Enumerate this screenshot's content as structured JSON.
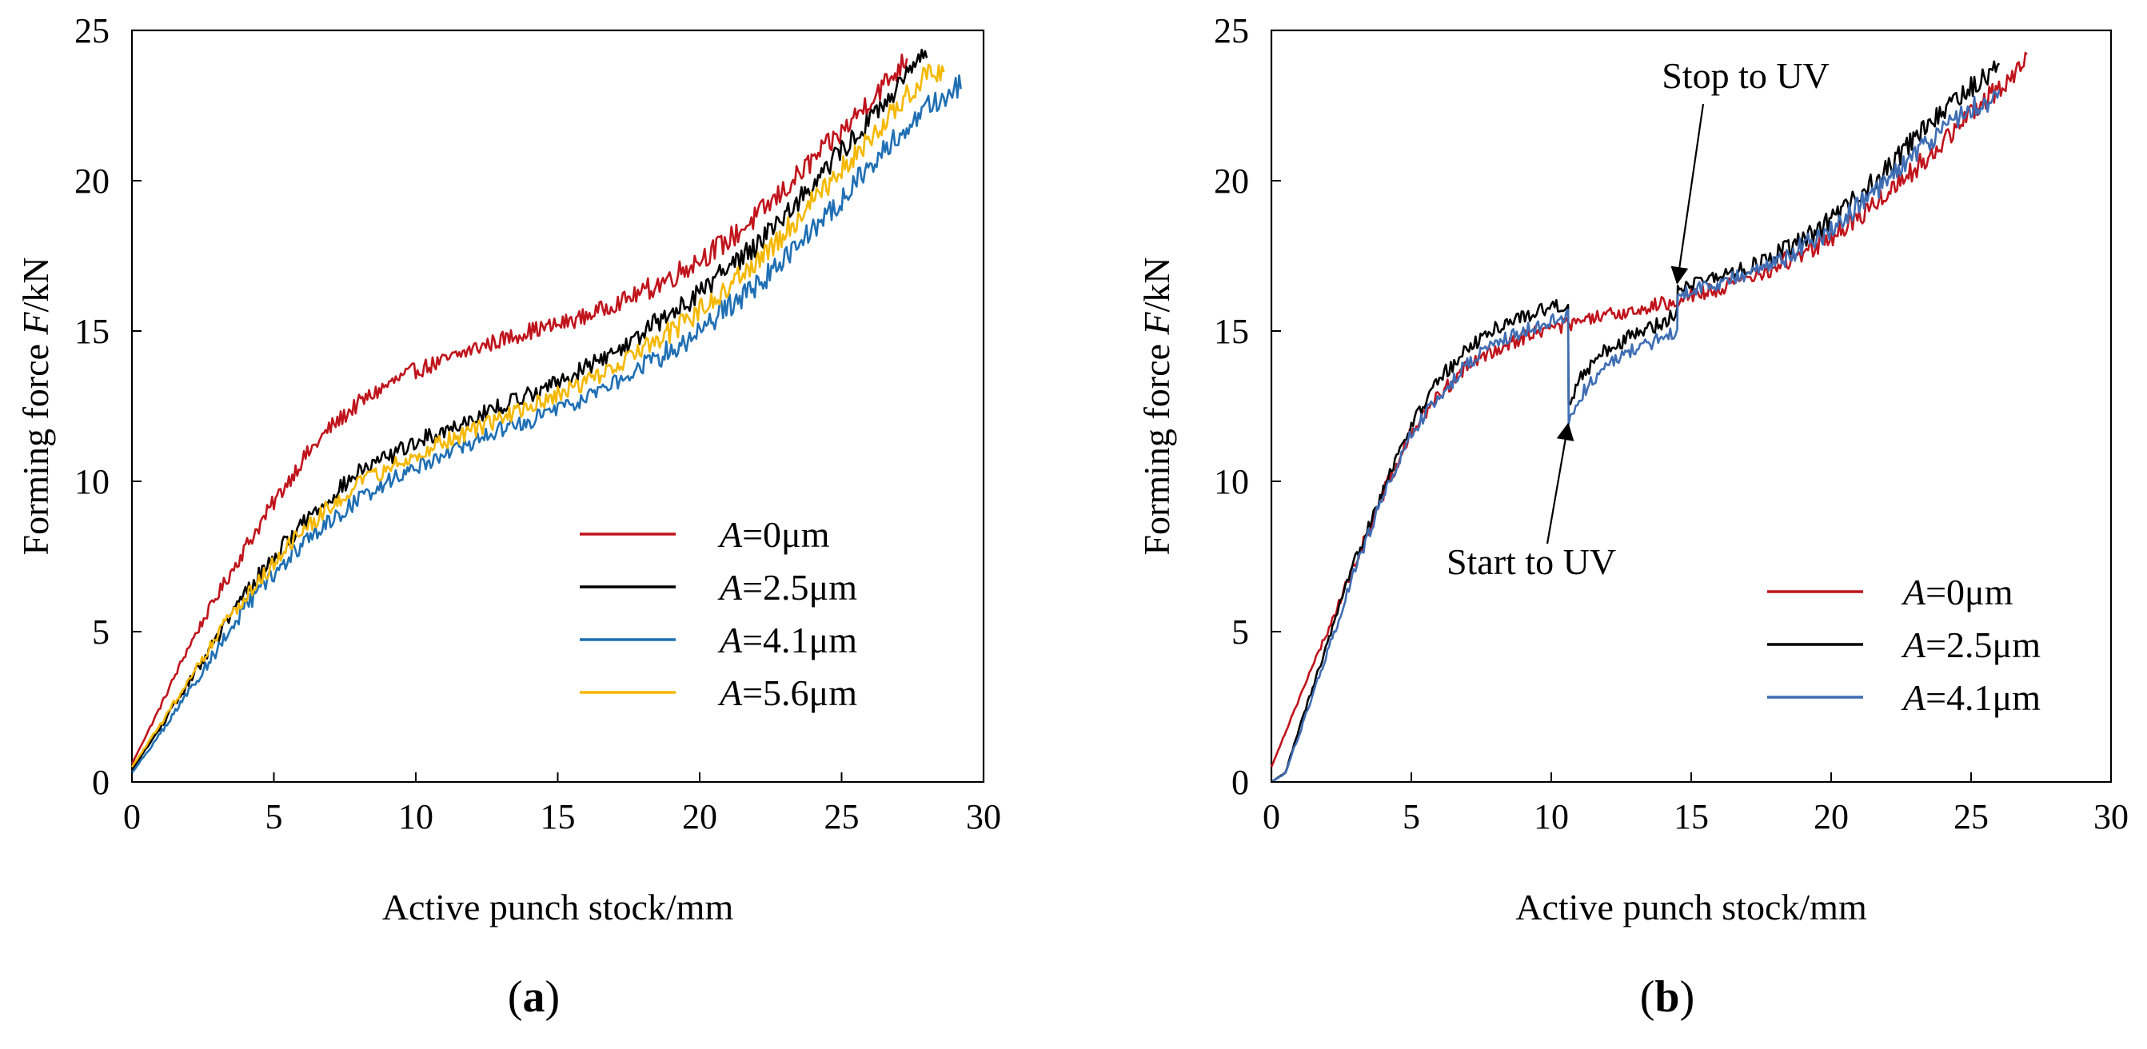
{
  "chart_data": [
    {
      "type": "line",
      "panel_label": "(a)",
      "xlabel": "Active punch stock/mm",
      "ylabel_prefix": "Forming force ",
      "ylabel_var": "F",
      "ylabel_suffix": "/kN",
      "xlim": [
        0,
        30
      ],
      "ylim": [
        0,
        25
      ],
      "xticks": [
        "0",
        "5",
        "10",
        "15",
        "20",
        "25",
        "30"
      ],
      "yticks": [
        "0",
        "5",
        "10",
        "15",
        "20",
        "25"
      ],
      "grid": false,
      "legend_position": "bottom-right",
      "noise": 0.28,
      "series": [
        {
          "name": "A=0μm",
          "legend_var": "A",
          "legend_rest": "=0μm",
          "color": "#c0141c",
          "points": [
            [
              0,
              0.6
            ],
            [
              1,
              2.5
            ],
            [
              2,
              4.5
            ],
            [
              3,
              6.2
            ],
            [
              4,
              7.8
            ],
            [
              5,
              9.3
            ],
            [
              6,
              10.7
            ],
            [
              7,
              11.8
            ],
            [
              8,
              12.6
            ],
            [
              9,
              13.2
            ],
            [
              10,
              13.7
            ],
            [
              11,
              14.0
            ],
            [
              12,
              14.4
            ],
            [
              13,
              14.7
            ],
            [
              14,
              15.0
            ],
            [
              15,
              15.2
            ],
            [
              16,
              15.5
            ],
            [
              17,
              15.9
            ],
            [
              18,
              16.3
            ],
            [
              19,
              16.8
            ],
            [
              20,
              17.4
            ],
            [
              21,
              18.0
            ],
            [
              22,
              18.8
            ],
            [
              23,
              19.7
            ],
            [
              24,
              20.7
            ],
            [
              25,
              21.6
            ],
            [
              26,
              22.7
            ],
            [
              27,
              23.7
            ],
            [
              27.3,
              24.1
            ]
          ]
        },
        {
          "name": "A=2.5μm",
          "legend_var": "A",
          "legend_rest": "=2.5μm",
          "color": "#000000",
          "points": [
            [
              0,
              0.4
            ],
            [
              1,
              1.8
            ],
            [
              2,
              3.3
            ],
            [
              3,
              4.8
            ],
            [
              4,
              6.3
            ],
            [
              5,
              7.5
            ],
            [
              6,
              8.6
            ],
            [
              7,
              9.5
            ],
            [
              8,
              10.3
            ],
            [
              9,
              10.8
            ],
            [
              10,
              11.3
            ],
            [
              11,
              11.7
            ],
            [
              12,
              12.1
            ],
            [
              13,
              12.5
            ],
            [
              14,
              12.9
            ],
            [
              15,
              13.3
            ],
            [
              16,
              13.8
            ],
            [
              17,
              14.3
            ],
            [
              18,
              14.9
            ],
            [
              19,
              15.6
            ],
            [
              20,
              16.3
            ],
            [
              21,
              17.1
            ],
            [
              22,
              17.9
            ],
            [
              23,
              18.9
            ],
            [
              24,
              19.9
            ],
            [
              25,
              21.0
            ],
            [
              26,
              22.0
            ],
            [
              27,
              23.1
            ],
            [
              28,
              24.2
            ]
          ]
        },
        {
          "name": "A=4.1μm",
          "legend_var": "A",
          "legend_rest": "=4.1μm",
          "color": "#1f6fb4",
          "points": [
            [
              0,
              0.3
            ],
            [
              1,
              1.6
            ],
            [
              2,
              3.0
            ],
            [
              3,
              4.4
            ],
            [
              4,
              5.8
            ],
            [
              5,
              6.9
            ],
            [
              6,
              7.9
            ],
            [
              7,
              8.7
            ],
            [
              8,
              9.4
            ],
            [
              9,
              10.0
            ],
            [
              10,
              10.5
            ],
            [
              11,
              10.9
            ],
            [
              12,
              11.3
            ],
            [
              13,
              11.7
            ],
            [
              14,
              12.0
            ],
            [
              15,
              12.4
            ],
            [
              16,
              12.8
            ],
            [
              17,
              13.3
            ],
            [
              18,
              13.8
            ],
            [
              19,
              14.4
            ],
            [
              20,
              15.0
            ],
            [
              21,
              15.8
            ],
            [
              22,
              16.5
            ],
            [
              23,
              17.4
            ],
            [
              24,
              18.4
            ],
            [
              25,
              19.4
            ],
            [
              26,
              20.5
            ],
            [
              27,
              21.5
            ],
            [
              28,
              22.4
            ],
            [
              29.2,
              23.2
            ]
          ]
        },
        {
          "name": "A=5.6μm",
          "legend_var": "A",
          "legend_rest": "=5.6μm",
          "color": "#f5b800",
          "points": [
            [
              0,
              0.5
            ],
            [
              1,
              1.9
            ],
            [
              2,
              3.4
            ],
            [
              3,
              4.9
            ],
            [
              4,
              6.2
            ],
            [
              5,
              7.3
            ],
            [
              6,
              8.3
            ],
            [
              7,
              9.2
            ],
            [
              8,
              9.9
            ],
            [
              9,
              10.4
            ],
            [
              10,
              10.9
            ],
            [
              11,
              11.3
            ],
            [
              12,
              11.7
            ],
            [
              13,
              12.1
            ],
            [
              14,
              12.5
            ],
            [
              15,
              12.9
            ],
            [
              16,
              13.3
            ],
            [
              17,
              13.8
            ],
            [
              18,
              14.4
            ],
            [
              19,
              15.0
            ],
            [
              20,
              15.7
            ],
            [
              21,
              16.5
            ],
            [
              22,
              17.3
            ],
            [
              23,
              18.3
            ],
            [
              24,
              19.3
            ],
            [
              25,
              20.4
            ],
            [
              26,
              21.4
            ],
            [
              27,
              22.5
            ],
            [
              28,
              23.5
            ],
            [
              28.6,
              23.7
            ]
          ]
        }
      ]
    },
    {
      "type": "line",
      "panel_label": "(b)",
      "xlabel": "Active punch stock/mm",
      "ylabel_prefix": "Forming force ",
      "ylabel_var": "F",
      "ylabel_suffix": "/kN",
      "xlim": [
        0,
        30
      ],
      "ylim": [
        0,
        25
      ],
      "xticks": [
        "0",
        "5",
        "10",
        "15",
        "20",
        "25",
        "30"
      ],
      "yticks": [
        "0",
        "5",
        "10",
        "15",
        "20",
        "25"
      ],
      "grid": false,
      "legend_position": "bottom-right",
      "noise": 0.25,
      "annotations": [
        {
          "text": "Stop to UV",
          "x": 14.5,
          "y": 16.6
        },
        {
          "text": "Start to UV",
          "x": 10.6,
          "y": 11.9
        }
      ],
      "series": [
        {
          "name": "A=0μm",
          "legend_var": "A",
          "legend_rest": "=0μm",
          "color": "#c0141c",
          "points": [
            [
              0,
              0.5
            ],
            [
              1,
              2.8
            ],
            [
              2,
              5.0
            ],
            [
              3,
              7.3
            ],
            [
              4,
              9.6
            ],
            [
              5,
              11.6
            ],
            [
              6,
              12.9
            ],
            [
              7,
              13.8
            ],
            [
              8,
              14.4
            ],
            [
              9,
              14.8
            ],
            [
              10,
              15.1
            ],
            [
              11,
              15.3
            ],
            [
              12,
              15.5
            ],
            [
              13,
              15.7
            ],
            [
              14,
              15.9
            ],
            [
              15,
              16.2
            ],
            [
              16,
              16.4
            ],
            [
              17,
              16.7
            ],
            [
              18,
              17.1
            ],
            [
              19,
              17.6
            ],
            [
              20,
              18.1
            ],
            [
              21,
              18.8
            ],
            [
              22,
              19.6
            ],
            [
              23,
              20.4
            ],
            [
              24,
              21.3
            ],
            [
              25,
              22.2
            ],
            [
              26,
              23.1
            ],
            [
              27,
              24.0
            ]
          ]
        },
        {
          "name": "A=2.5μm",
          "legend_var": "A",
          "legend_rest": "=2.5μm",
          "color": "#000000",
          "points": [
            [
              0,
              0
            ],
            [
              0.5,
              0.3
            ],
            [
              1,
              1.8
            ],
            [
              2,
              4.6
            ],
            [
              3,
              7.4
            ],
            [
              4,
              9.8
            ],
            [
              5,
              11.9
            ],
            [
              6,
              13.4
            ],
            [
              7,
              14.4
            ],
            [
              8,
              15.1
            ],
            [
              9,
              15.5
            ],
            [
              10,
              15.8
            ],
            [
              10.6,
              15.9
            ],
            [
              10.62,
              12.6
            ],
            [
              11,
              13.4
            ],
            [
              12,
              14.4
            ],
            [
              13,
              14.9
            ],
            [
              14,
              15.3
            ],
            [
              14.5,
              15.6
            ],
            [
              14.52,
              16.5
            ],
            [
              15,
              16.6
            ],
            [
              16,
              16.8
            ],
            [
              17,
              17.1
            ],
            [
              18,
              17.5
            ],
            [
              19,
              18.0
            ],
            [
              20,
              18.7
            ],
            [
              21,
              19.5
            ],
            [
              22,
              20.4
            ],
            [
              23,
              21.4
            ],
            [
              24,
              22.3
            ],
            [
              25,
              23.1
            ],
            [
              26,
              23.8
            ]
          ]
        },
        {
          "name": "A=4.1μm",
          "legend_var": "A",
          "legend_rest": "=4.1μm",
          "color": "#3f6db4",
          "points": [
            [
              0,
              0
            ],
            [
              0.5,
              0.3
            ],
            [
              1,
              1.6
            ],
            [
              2,
              4.3
            ],
            [
              3,
              7.1
            ],
            [
              4,
              9.5
            ],
            [
              5,
              11.6
            ],
            [
              6,
              12.8
            ],
            [
              7,
              13.9
            ],
            [
              8,
              14.6
            ],
            [
              9,
              15.0
            ],
            [
              10,
              15.3
            ],
            [
              10.6,
              15.5
            ],
            [
              10.62,
              11.9
            ],
            [
              11,
              12.8
            ],
            [
              12,
              13.9
            ],
            [
              13,
              14.4
            ],
            [
              14,
              14.8
            ],
            [
              14.5,
              15.0
            ],
            [
              14.52,
              16.2
            ],
            [
              15,
              16.4
            ],
            [
              16,
              16.6
            ],
            [
              17,
              16.9
            ],
            [
              18,
              17.3
            ],
            [
              19,
              17.8
            ],
            [
              20,
              18.4
            ],
            [
              21,
              19.2
            ],
            [
              22,
              20.0
            ],
            [
              23,
              20.9
            ],
            [
              24,
              21.7
            ],
            [
              25,
              22.4
            ],
            [
              26,
              22.8
            ]
          ]
        }
      ]
    }
  ]
}
